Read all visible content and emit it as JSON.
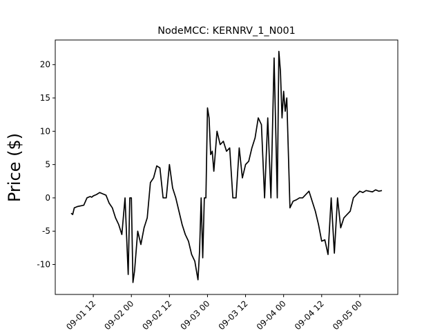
{
  "chart_data": {
    "type": "line",
    "title": "NodeMCC: KERNRV_1_N001",
    "xlabel": "",
    "ylabel": "Price ($)",
    "ylim": [
      -14.5,
      23.7
    ],
    "xlim": [
      "2020-09-01 00:00",
      "2020-09-05 12:00"
    ],
    "yticks": [
      -10,
      -5,
      0,
      5,
      10,
      15,
      20
    ],
    "xticks": [
      "2020-09-01 12:00",
      "2020-09-02 00:00",
      "2020-09-02 12:00",
      "2020-09-03 00:00",
      "2020-09-03 12:00",
      "2020-09-04 00:00",
      "2020-09-04 12:00",
      "2020-09-05 00:00"
    ],
    "xtick_labels": [
      "09-01 12",
      "09-02 00",
      "09-02 12",
      "09-03 00",
      "09-03 12",
      "09-04 00",
      "09-04 12",
      "09-05 00"
    ],
    "grid": false,
    "line_color": "#000000",
    "series": [
      {
        "x": [
          "2020-09-01 05:00",
          "2020-09-01 05:30",
          "2020-09-01 06:00",
          "2020-09-01 07:00",
          "2020-09-01 08:00",
          "2020-09-01 09:00",
          "2020-09-01 10:00",
          "2020-09-01 11:00",
          "2020-09-01 11:30",
          "2020-09-01 12:00",
          "2020-09-01 13:00",
          "2020-09-01 14:00",
          "2020-09-01 15:00",
          "2020-09-01 16:00",
          "2020-09-01 17:00",
          "2020-09-01 18:00",
          "2020-09-01 19:00",
          "2020-09-01 20:00",
          "2020-09-01 21:00",
          "2020-09-01 22:00",
          "2020-09-01 22:30",
          "2020-09-01 23:00",
          "2020-09-01 23:30",
          "2020-09-02 00:00",
          "2020-09-02 00:30",
          "2020-09-02 01:00",
          "2020-09-02 02:00",
          "2020-09-02 03:00",
          "2020-09-02 04:00",
          "2020-09-02 05:00",
          "2020-09-02 06:00",
          "2020-09-02 07:00",
          "2020-09-02 08:00",
          "2020-09-02 09:00",
          "2020-09-02 10:00",
          "2020-09-02 11:00",
          "2020-09-02 12:00",
          "2020-09-02 13:00",
          "2020-09-02 14:00",
          "2020-09-02 15:00",
          "2020-09-02 16:00",
          "2020-09-02 17:00",
          "2020-09-02 18:00",
          "2020-09-02 19:00",
          "2020-09-02 20:00",
          "2020-09-02 21:00",
          "2020-09-02 21:30",
          "2020-09-02 22:00",
          "2020-09-02 22:30",
          "2020-09-02 23:00",
          "2020-09-02 23:30",
          "2020-09-03 00:00",
          "2020-09-03 00:30",
          "2020-09-03 01:00",
          "2020-09-03 01:30",
          "2020-09-03 02:00",
          "2020-09-03 03:00",
          "2020-09-03 04:00",
          "2020-09-03 05:00",
          "2020-09-03 06:00",
          "2020-09-03 07:00",
          "2020-09-03 08:00",
          "2020-09-03 09:00",
          "2020-09-03 10:00",
          "2020-09-03 11:00",
          "2020-09-03 12:00",
          "2020-09-03 13:00",
          "2020-09-03 14:00",
          "2020-09-03 15:00",
          "2020-09-03 16:00",
          "2020-09-03 17:00",
          "2020-09-03 18:00",
          "2020-09-03 19:00",
          "2020-09-03 20:00",
          "2020-09-03 21:00",
          "2020-09-03 22:00",
          "2020-09-03 22:30",
          "2020-09-03 23:00",
          "2020-09-03 23:30",
          "2020-09-04 00:00",
          "2020-09-04 00:30",
          "2020-09-04 01:00",
          "2020-09-04 02:00",
          "2020-09-04 03:00",
          "2020-09-04 04:00",
          "2020-09-04 05:00",
          "2020-09-04 06:00",
          "2020-09-04 07:00",
          "2020-09-04 08:00",
          "2020-09-04 09:00",
          "2020-09-04 10:00",
          "2020-09-04 11:00",
          "2020-09-04 12:00",
          "2020-09-04 13:00",
          "2020-09-04 14:00",
          "2020-09-04 15:00",
          "2020-09-04 16:00",
          "2020-09-04 17:00",
          "2020-09-04 18:00",
          "2020-09-04 19:00",
          "2020-09-04 20:00",
          "2020-09-04 21:00",
          "2020-09-04 22:00",
          "2020-09-04 23:00",
          "2020-09-05 00:00",
          "2020-09-05 01:00",
          "2020-09-05 02:00",
          "2020-09-05 03:00",
          "2020-09-05 04:00",
          "2020-09-05 05:00",
          "2020-09-05 06:00",
          "2020-09-05 07:00"
        ],
        "y": [
          -2.3,
          -2.5,
          -1.5,
          -1.3,
          -1.2,
          -1.1,
          0.0,
          0.2,
          0.1,
          0.3,
          0.5,
          0.8,
          0.6,
          0.4,
          -0.8,
          -1.5,
          -3.0,
          -4.0,
          -5.5,
          0.0,
          -5.8,
          -11.5,
          0.0,
          0.0,
          -12.7,
          -11.0,
          -5.0,
          -7.0,
          -4.5,
          -3.0,
          2.3,
          3.0,
          4.8,
          4.5,
          0.0,
          0.0,
          5.0,
          1.5,
          0.0,
          -2.0,
          -4.0,
          -5.5,
          -6.5,
          -8.5,
          -9.5,
          -12.3,
          -8.0,
          0.0,
          -9.0,
          0.0,
          0.0,
          13.5,
          12.0,
          6.5,
          7.0,
          4.0,
          10.0,
          8.0,
          8.5,
          7.0,
          7.5,
          0.0,
          0.0,
          7.5,
          3.0,
          5.0,
          5.5,
          7.5,
          9.0,
          12.0,
          11.0,
          0.0,
          12.0,
          0.0,
          21.0,
          0.0,
          22.0,
          19.0,
          12.0,
          16.0,
          13.0,
          15.0,
          -1.5,
          -0.5,
          -0.3,
          0.0,
          0.0,
          0.5,
          1.0,
          -0.5,
          -2.0,
          -4.0,
          -6.5,
          -6.3,
          -8.5,
          0.0,
          -8.3,
          0.0,
          -4.5,
          -3.0,
          -2.5,
          -2.0,
          0.0,
          0.5,
          1.0,
          0.8,
          1.1,
          1.0,
          0.9,
          1.2,
          1.0,
          1.1
        ]
      }
    ]
  }
}
